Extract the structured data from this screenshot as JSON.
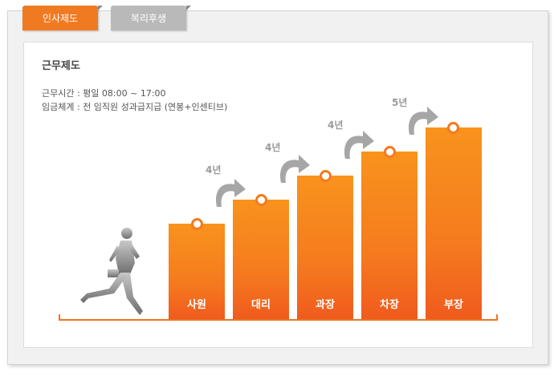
{
  "tabs": [
    {
      "label": "인사제도",
      "active": true
    },
    {
      "label": "복리후생",
      "active": false
    }
  ],
  "section": {
    "title": "근무제도",
    "work_hours": "근무시간 : 평일 08:00 ~ 17:00",
    "pay_system": "임금체계 : 전 임직원 성과급지급 (연봉+인센티브)"
  },
  "ranks": [
    {
      "label": "사원"
    },
    {
      "label": "대리"
    },
    {
      "label": "과장"
    },
    {
      "label": "차장"
    },
    {
      "label": "부장"
    }
  ],
  "promotion_years": [
    "4년",
    "4년",
    "4년",
    "5년"
  ],
  "colors": {
    "accent": "#f07a22",
    "bar_top": "#f8931d",
    "bar_bottom": "#f05a1e",
    "arrow": "#a6a6a6"
  },
  "icons": [
    "walking-businessman-figure",
    "curved-arrow-icon"
  ]
}
